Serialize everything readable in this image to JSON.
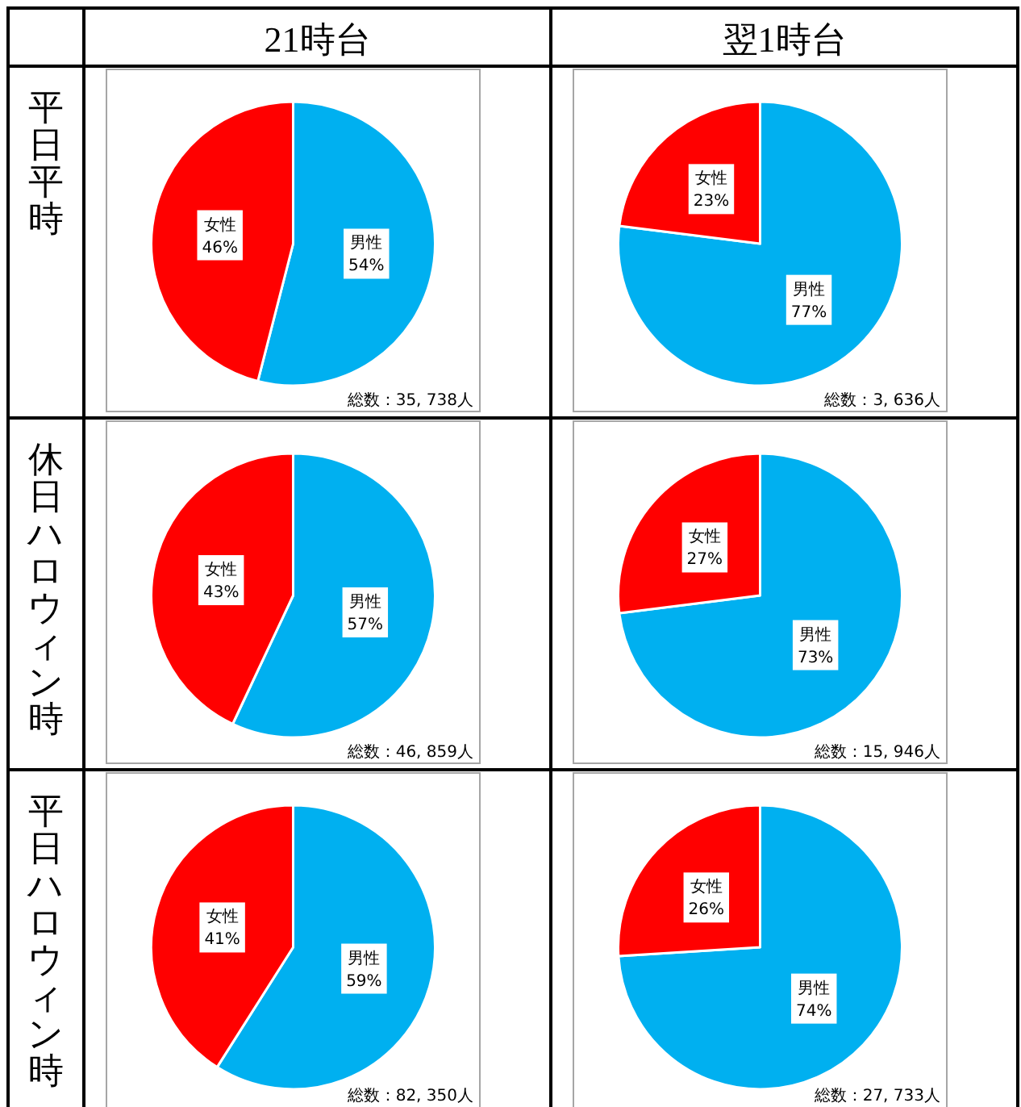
{
  "chart_data": [
    {
      "type": "pie",
      "title": "21時台",
      "ylabel": "平日平時",
      "categories": [
        "男性",
        "女性"
      ],
      "values": [
        54,
        46
      ],
      "colors": [
        "#00b0f0",
        "#ff0000"
      ],
      "value_labels": [
        "54%",
        "46%"
      ],
      "annotations": [
        "総数：35, 738人"
      ]
    },
    {
      "type": "pie",
      "title": "翌1時台",
      "categories": [
        "男性",
        "女性"
      ],
      "values": [
        77,
        23
      ],
      "colors": [
        "#00b0f0",
        "#ff0000"
      ],
      "value_labels": [
        "77%",
        "23%"
      ],
      "annotations": [
        "総数：3, 636人"
      ]
    },
    {
      "type": "pie",
      "ylabel": "休日ハロウィン時",
      "categories": [
        "男性",
        "女性"
      ],
      "values": [
        57,
        43
      ],
      "colors": [
        "#00b0f0",
        "#ff0000"
      ],
      "value_labels": [
        "57%",
        "43%"
      ],
      "annotations": [
        "総数：46, 859人"
      ]
    },
    {
      "type": "pie",
      "categories": [
        "男性",
        "女性"
      ],
      "values": [
        73,
        27
      ],
      "colors": [
        "#00b0f0",
        "#ff0000"
      ],
      "value_labels": [
        "73%",
        "27%"
      ],
      "annotations": [
        "総数：15, 946人"
      ]
    },
    {
      "type": "pie",
      "ylabel": "平日ハロウィン時",
      "categories": [
        "男性",
        "女性"
      ],
      "values": [
        59,
        41
      ],
      "colors": [
        "#00b0f0",
        "#ff0000"
      ],
      "value_labels": [
        "59%",
        "41%"
      ],
      "annotations": [
        "総数：82, 350人"
      ]
    },
    {
      "type": "pie",
      "categories": [
        "男性",
        "女性"
      ],
      "values": [
        74,
        26
      ],
      "colors": [
        "#00b0f0",
        "#ff0000"
      ],
      "value_labels": [
        "74%",
        "26%"
      ],
      "annotations": [
        "総数：27, 733人"
      ]
    }
  ]
}
